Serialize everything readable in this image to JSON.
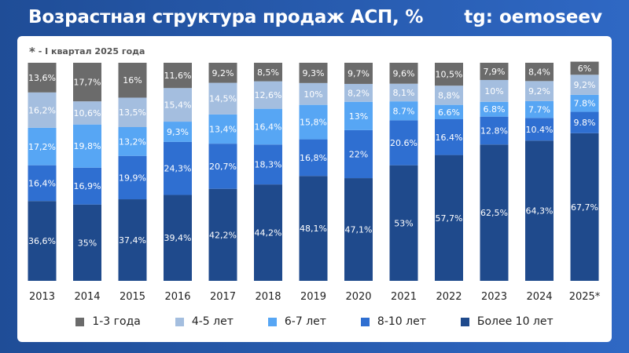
{
  "header": {
    "title": "Возрастная структура продаж АСП, %",
    "handle": "tg: oemoseev"
  },
  "footnote": {
    "star": "*",
    "text": " - I квартал 2025 года"
  },
  "chart_data": {
    "type": "bar",
    "stacked": true,
    "categories": [
      "2013",
      "2014",
      "2015",
      "2016",
      "2017",
      "2018",
      "2019",
      "2020",
      "2021",
      "2022",
      "2023",
      "2024",
      "2025*"
    ],
    "series": [
      {
        "name": "Более 10 лет",
        "color": "#1f4a8c",
        "values": [
          36.6,
          35,
          37.4,
          39.4,
          42.2,
          44.2,
          48.1,
          47.1,
          53,
          57.7,
          62.5,
          64.3,
          67.7
        ],
        "labels": [
          "36,6%",
          "35%",
          "37,4%",
          "39,4%",
          "42,2%",
          "44,2%",
          "48,1%",
          "47,1%",
          "53%",
          "57,7%",
          "62,5%",
          "64,3%",
          "67,7%"
        ]
      },
      {
        "name": "8-10 лет",
        "color": "#2f6fd1",
        "values": [
          16.4,
          16.9,
          19.9,
          24.3,
          20.7,
          18.3,
          16.8,
          22,
          20.6,
          16.4,
          12.8,
          10.4,
          9.8
        ],
        "labels": [
          "16,4%",
          "16,9%",
          "19,9%",
          "24,3%",
          "20,7%",
          "18,3%",
          "16,8%",
          "22%",
          "20.6%",
          "16.4%",
          "12.8%",
          "10.4%",
          "9.8%"
        ]
      },
      {
        "name": "6-7 лет",
        "color": "#57a6f4",
        "values": [
          17.2,
          19.8,
          13.2,
          9.3,
          13.4,
          16.4,
          15.8,
          13,
          8.7,
          6.6,
          6.8,
          7.7,
          7.8
        ],
        "labels": [
          "17,2%",
          "19,8%",
          "13,2%",
          "9,3%",
          "13,4%",
          "16,4%",
          "15,8%",
          "13%",
          "8.7%",
          "6.6%",
          "6.8%",
          "7.7%",
          "7.8%"
        ]
      },
      {
        "name": "4-5 лет",
        "color": "#a4bedf",
        "values": [
          16.2,
          10.6,
          13.5,
          15.4,
          14.5,
          12.6,
          10,
          8.2,
          8.1,
          8.8,
          10,
          9.2,
          9.2
        ],
        "labels": [
          "16,2%",
          "10,6%",
          "13,5%",
          "15,4%",
          "14,5%",
          "12,6%",
          "10%",
          "8,2%",
          "8,1%",
          "8,8%",
          "10%",
          "9,2%",
          "9,2%"
        ]
      },
      {
        "name": "1-3 года",
        "color": "#6b6b6b",
        "values": [
          13.6,
          17.7,
          16,
          11.6,
          9.2,
          8.5,
          9.3,
          9.7,
          9.6,
          10.5,
          7.9,
          8.4,
          6
        ],
        "labels": [
          "13,6%",
          "17,7%",
          "16%",
          "11,6%",
          "9,2%",
          "8,5%",
          "9,3%",
          "9,7%",
          "9,6%",
          "10,5%",
          "7,9%",
          "8,4%",
          "6%"
        ]
      }
    ],
    "legend_order": [
      "1-3 года",
      "4-5 лет",
      "6-7 лет",
      "8-10 лет",
      "Более 10 лет"
    ],
    "legend_position": "bottom",
    "ylim": [
      0,
      100
    ],
    "grid": false
  }
}
